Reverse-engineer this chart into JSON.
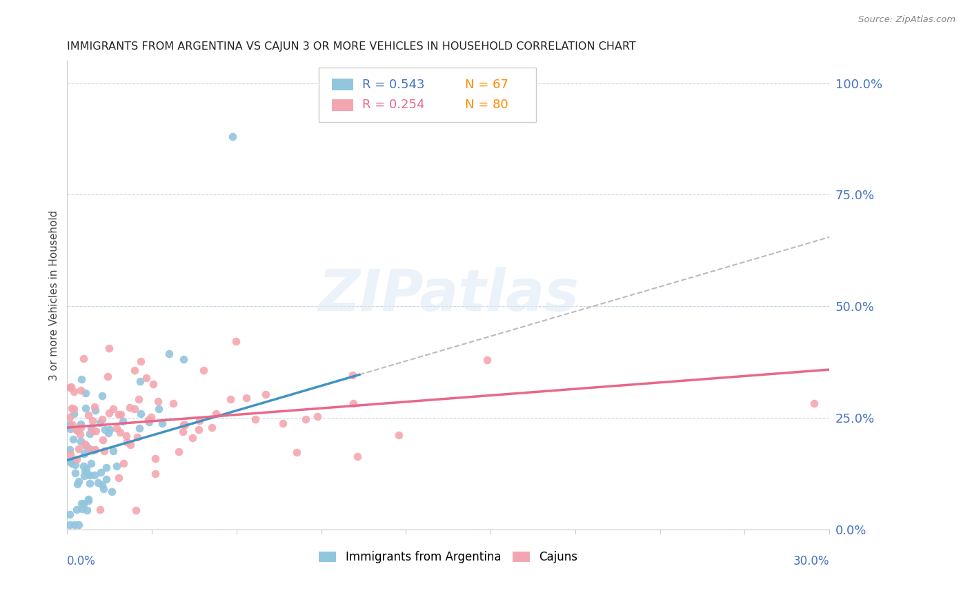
{
  "title": "IMMIGRANTS FROM ARGENTINA VS CAJUN 3 OR MORE VEHICLES IN HOUSEHOLD CORRELATION CHART",
  "source": "Source: ZipAtlas.com",
  "ylabel": "3 or more Vehicles in Household",
  "xlim": [
    0.0,
    0.3
  ],
  "ylim": [
    0.0,
    1.05
  ],
  "ytick_vals": [
    0.0,
    0.25,
    0.5,
    0.75,
    1.0
  ],
  "ytick_labels": [
    "0.0%",
    "25.0%",
    "50.0%",
    "75.0%",
    "100.0%"
  ],
  "color_argentina": "#92c5de",
  "color_cajun": "#f4a6b0",
  "color_trendline_argentina": "#4393c3",
  "color_trendline_cajun": "#e8688a",
  "color_trendline_ext": "#bbbbbb",
  "color_axis_labels": "#4472c4",
  "color_r_argentina": "#4472c4",
  "color_r_cajun": "#e8688a",
  "color_n": "#ff8c00",
  "legend_r1": "R = 0.543",
  "legend_n1": "N = 67",
  "legend_r2": "R = 0.254",
  "legend_n2": "N = 80",
  "watermark": "ZIPatlas",
  "trendline_arg_x0": 0.0,
  "trendline_arg_y0": 0.155,
  "trendline_arg_x1": 0.3,
  "trendline_arg_y1": 0.655,
  "trendline_caj_x0": 0.0,
  "trendline_caj_y0": 0.228,
  "trendline_caj_x1": 0.3,
  "trendline_caj_y1": 0.358,
  "trendline_solid_end": 0.115,
  "trendline_ext_start": 0.115
}
